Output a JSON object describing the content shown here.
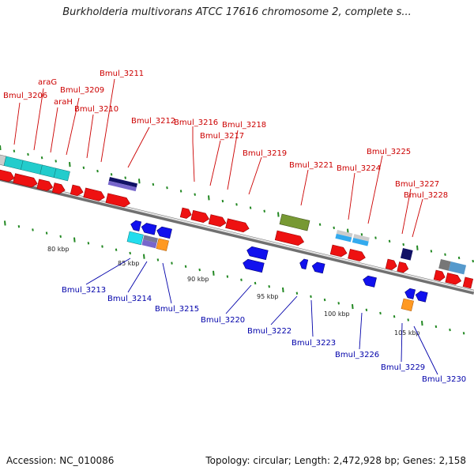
{
  "title": "Burkholderia multivorans ATCC 17616 chromosome 2, complete s...",
  "footer": {
    "accession": "Accession: NC_010086",
    "topology": "Topology: circular; Length: 2,472,928 bp; Genes: 2,158"
  },
  "colors": {
    "top_label": "#cc0000",
    "bottom_label": "#0000aa",
    "tick": "#228822",
    "backbone_light": "#e0e0e0",
    "backbone_dark": "#707070"
  },
  "scale_labels": [
    {
      "text": "80 kbp",
      "kbp": 80
    },
    {
      "text": "85 kbp",
      "kbp": 85
    },
    {
      "text": "90 kbp",
      "kbp": 90
    },
    {
      "text": "95 kbp",
      "kbp": 95
    },
    {
      "text": "100 kbp",
      "kbp": 100
    },
    {
      "text": "105 kbp",
      "kbp": 105
    }
  ],
  "top_labels": [
    "Bmul_3206",
    "araG",
    "Bmul_3209",
    "araH",
    "Bmul_3210",
    "Bmul_3211",
    "Bmul_3212",
    "Bmul_3216",
    "Bmul_3217",
    "Bmul_3218",
    "Bmul_3219",
    "Bmul_3221",
    "Bmul_3224",
    "Bmul_3225",
    "Bmul_3227",
    "Bmul_3228"
  ],
  "bottom_labels": [
    "Bmul_3213",
    "Bmul_3214",
    "Bmul_3215",
    "Bmul_3220",
    "Bmul_3222",
    "Bmul_3223",
    "Bmul_3226",
    "Bmul_3229",
    "Bmul_3230"
  ]
}
